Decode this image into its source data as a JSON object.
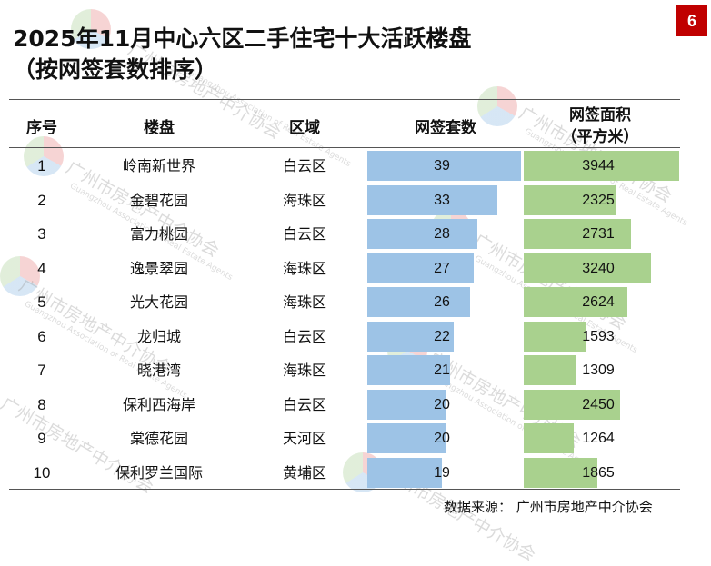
{
  "title_line1": "2025年11月中心六区二手住宅十大活跃楼盘",
  "title_line2": "（按网签套数排序）",
  "page_number": "6",
  "headers": {
    "seq": "序号",
    "name": "楼盘",
    "district": "区域",
    "units": "网签套数",
    "area_line1": "网签面积",
    "area_line2": "（平方米）"
  },
  "rows": [
    {
      "seq": "1",
      "name": "岭南新世界",
      "district": "白云区",
      "units": 39,
      "area": 3944
    },
    {
      "seq": "2",
      "name": "金碧花园",
      "district": "海珠区",
      "units": 33,
      "area": 2325
    },
    {
      "seq": "3",
      "name": "富力桃园",
      "district": "白云区",
      "units": 28,
      "area": 2731
    },
    {
      "seq": "4",
      "name": "逸景翠园",
      "district": "海珠区",
      "units": 27,
      "area": 3240
    },
    {
      "seq": "5",
      "name": "光大花园",
      "district": "海珠区",
      "units": 26,
      "area": 2624
    },
    {
      "seq": "6",
      "name": "龙归城",
      "district": "白云区",
      "units": 22,
      "area": 1593
    },
    {
      "seq": "7",
      "name": "晓港湾",
      "district": "海珠区",
      "units": 21,
      "area": 1309
    },
    {
      "seq": "8",
      "name": "保利西海岸",
      "district": "白云区",
      "units": 20,
      "area": 2450
    },
    {
      "seq": "9",
      "name": "棠德花园",
      "district": "天河区",
      "units": 20,
      "area": 1264
    },
    {
      "seq": "10",
      "name": "保利罗兰国际",
      "district": "黄埔区",
      "units": 19,
      "area": 1865
    }
  ],
  "source": "数据来源：  广州市房地产中介协会",
  "watermark": {
    "cn": "广州市房地产中介协会",
    "en": "Guangzhou Association of Real Estate Agents"
  },
  "colors": {
    "units_bar": "#9dc3e6",
    "area_bar": "#a9d18e",
    "badge": "#c00000"
  }
}
